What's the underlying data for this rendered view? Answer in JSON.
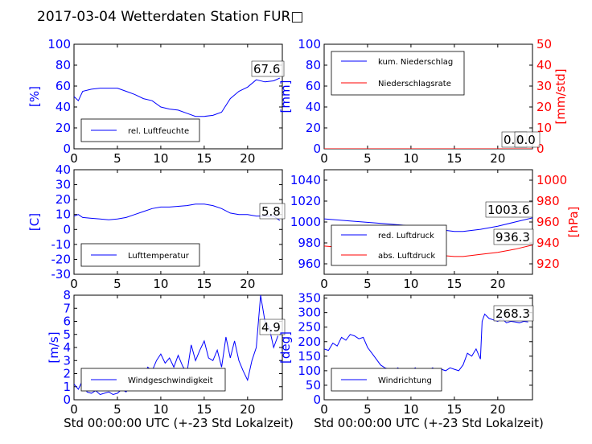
{
  "title": "2017-03-04 Wetterdaten Station FUR□",
  "colors": {
    "blue": "#0000ff",
    "red": "#ff0000",
    "black": "#000000"
  },
  "chart_data": [
    {
      "id": "humidity",
      "type": "line",
      "ylabel": "[%]",
      "xlim": [
        0,
        24
      ],
      "ylim": [
        0,
        100
      ],
      "xticks": [
        0,
        5,
        10,
        15,
        20
      ],
      "yticks": [
        0,
        20,
        40,
        60,
        80,
        100
      ],
      "legend": "lower-left",
      "annotations": [
        "67.6"
      ],
      "series": [
        {
          "name": "rel. Luftfeuchte",
          "color": "#0000ff",
          "x": [
            0,
            0.5,
            1,
            2,
            3,
            4,
            5,
            6,
            7,
            8,
            9,
            10,
            11,
            12,
            13,
            14,
            15,
            16,
            17,
            18,
            19,
            20,
            21,
            22,
            23,
            23.7
          ],
          "y": [
            50,
            46,
            55,
            57,
            58,
            58,
            58,
            55,
            52,
            48,
            46,
            40,
            38,
            37,
            34,
            31,
            31,
            32,
            35,
            48,
            55,
            59,
            66,
            64,
            65,
            67.6
          ]
        }
      ]
    },
    {
      "id": "precip",
      "type": "line",
      "ylabel": "[mm]",
      "y2label": "[mm/std]",
      "xlim": [
        0,
        24
      ],
      "ylim": [
        0,
        100
      ],
      "y2lim": [
        0,
        50
      ],
      "xticks": [
        0,
        5,
        10,
        15,
        20
      ],
      "yticks": [
        0,
        20,
        40,
        60,
        80,
        100
      ],
      "y2ticks": [
        0,
        10,
        20,
        30,
        40,
        50
      ],
      "legend": "upper-left",
      "annotations": [
        "0.0",
        "0.0"
      ],
      "series": [
        {
          "name": "kum. Niederschlag",
          "color": "#0000ff",
          "axis": "left",
          "x": [
            0,
            24
          ],
          "y": [
            0,
            0
          ]
        },
        {
          "name": "Niederschlagsrate",
          "color": "#ff0000",
          "axis": "right",
          "x": [
            0,
            24
          ],
          "y": [
            0,
            0
          ]
        }
      ]
    },
    {
      "id": "temperature",
      "type": "line",
      "ylabel": "[C]",
      "xlim": [
        0,
        24
      ],
      "ylim": [
        -30,
        40
      ],
      "xticks": [
        0,
        5,
        10,
        15,
        20
      ],
      "yticks": [
        -30,
        -20,
        -10,
        0,
        10,
        20,
        30,
        40
      ],
      "legend": "lower-left",
      "annotations": [
        "5.8"
      ],
      "series": [
        {
          "name": "Lufttemperatur",
          "color": "#0000ff",
          "x": [
            0,
            0.5,
            1,
            2,
            3,
            4,
            5,
            6,
            7,
            8,
            9,
            10,
            11,
            12,
            13,
            14,
            15,
            16,
            17,
            18,
            19,
            20,
            21,
            22,
            23,
            23.7
          ],
          "y": [
            9,
            10,
            8,
            7.5,
            7,
            6.5,
            7,
            8,
            10,
            12,
            14,
            15,
            15,
            15.5,
            16,
            17,
            17,
            16,
            14,
            11,
            10,
            10,
            9,
            9,
            9,
            6
          ]
        }
      ]
    },
    {
      "id": "pressure",
      "type": "line",
      "ylabel": "[hPa]",
      "xlim": [
        0,
        24
      ],
      "ylim": [
        950,
        1050
      ],
      "y2lim": [
        910,
        1010
      ],
      "xticks": [
        0,
        5,
        10,
        15,
        20
      ],
      "yticks": [
        960,
        980,
        1000,
        1020,
        1040
      ],
      "y2ticks": [
        920,
        940,
        960,
        980,
        1000
      ],
      "legend": "lower-left",
      "annotations": [
        "1003.6",
        "936.3"
      ],
      "series": [
        {
          "name": "red. Luftdruck",
          "color": "#0000ff",
          "axis": "left",
          "x": [
            0,
            3,
            6,
            9,
            12,
            15,
            16,
            18,
            20,
            22,
            24
          ],
          "y": [
            1003,
            1001,
            999,
            997,
            994,
            991,
            991,
            993,
            996,
            1000,
            1004
          ]
        },
        {
          "name": "abs. Luftdruck",
          "color": "#ff0000",
          "axis": "right",
          "x": [
            0,
            3,
            6,
            9,
            12,
            15,
            16,
            18,
            20,
            22,
            24
          ],
          "y": [
            937,
            935,
            933,
            931,
            929,
            927,
            927,
            929,
            931,
            934,
            938
          ]
        }
      ]
    },
    {
      "id": "windspeed",
      "type": "line",
      "ylabel": "[m/s]",
      "xlim": [
        0,
        24
      ],
      "ylim": [
        0,
        8
      ],
      "xticks": [
        0,
        5,
        10,
        15,
        20
      ],
      "yticks": [
        0,
        1,
        2,
        3,
        4,
        5,
        6,
        7,
        8
      ],
      "legend": "lower-left",
      "annotations": [
        "4.9"
      ],
      "series": [
        {
          "name": "Windgeschwindigkeit",
          "color": "#0000ff",
          "x": [
            0,
            0.5,
            1,
            1.5,
            2,
            2.5,
            3,
            3.5,
            4,
            4.5,
            5,
            5.5,
            6,
            6.5,
            7,
            7.5,
            8,
            8.5,
            9,
            9.5,
            10,
            10.5,
            11,
            11.5,
            12,
            12.5,
            13,
            13.5,
            14,
            14.5,
            15,
            15.5,
            16,
            16.5,
            17,
            17.5,
            18,
            18.5,
            19,
            19.5,
            20,
            20.5,
            21,
            21.5,
            22,
            22.5,
            23,
            23.5
          ],
          "y": [
            1.2,
            0.8,
            1.5,
            0.6,
            0.5,
            0.7,
            0.4,
            0.5,
            0.6,
            0.4,
            0.5,
            0.8,
            0.6,
            1.2,
            1.5,
            2.0,
            1.8,
            2.5,
            2.2,
            3.0,
            3.5,
            2.8,
            3.2,
            2.5,
            3.4,
            2.6,
            2.0,
            4.2,
            3.0,
            3.8,
            4.5,
            3.2,
            3.0,
            3.8,
            2.5,
            4.8,
            3.2,
            4.5,
            3.0,
            2.2,
            1.5,
            3.0,
            4.0,
            8.0,
            6.0,
            5.5,
            4.0,
            4.9
          ]
        }
      ]
    },
    {
      "id": "winddir",
      "type": "line",
      "ylabel": "[deg]",
      "xlim": [
        0,
        24
      ],
      "ylim": [
        0,
        360
      ],
      "xticks": [
        0,
        5,
        10,
        15,
        20
      ],
      "yticks": [
        0,
        50,
        100,
        150,
        200,
        250,
        300,
        350
      ],
      "legend": "lower-left",
      "annotations": [
        "268.3"
      ],
      "series": [
        {
          "name": "Windrichtung",
          "color": "#0000ff",
          "x": [
            0,
            0.5,
            1,
            1.5,
            2,
            2.5,
            3,
            3.5,
            4,
            4.5,
            5,
            5.5,
            6,
            6.5,
            7,
            7.5,
            8,
            8.5,
            9,
            9.5,
            10,
            10.5,
            11,
            11.5,
            12,
            12.5,
            13,
            13.5,
            14,
            14.5,
            15,
            15.5,
            16,
            16.5,
            17,
            17.5,
            18,
            18.2,
            18.5,
            19,
            19.5,
            20,
            20.5,
            21,
            21.5,
            22,
            22.5,
            23,
            23.5
          ],
          "y": [
            175,
            170,
            195,
            185,
            215,
            205,
            225,
            220,
            210,
            215,
            180,
            160,
            140,
            120,
            110,
            105,
            100,
            110,
            95,
            105,
            100,
            110,
            95,
            105,
            100,
            110,
            95,
            105,
            100,
            110,
            105,
            100,
            120,
            160,
            150,
            175,
            140,
            270,
            295,
            280,
            275,
            270,
            280,
            265,
            270,
            268,
            265,
            270,
            268
          ]
        }
      ]
    }
  ],
  "xlabel_left": "Std 00:00:00 UTC (+-23 Std Lokalzeit)",
  "xlabel_right": "Std 00:00:00 UTC (+-23 Std Lokalzeit)"
}
